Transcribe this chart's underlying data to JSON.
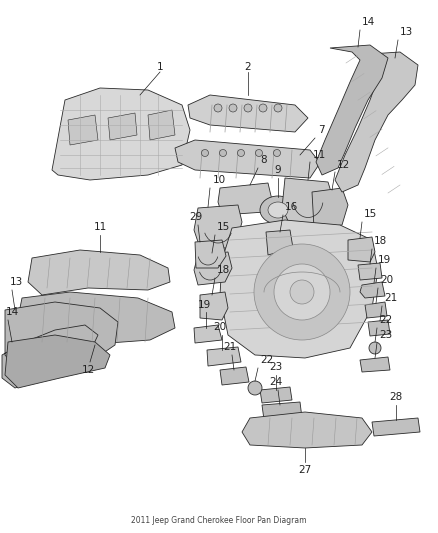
{
  "background_color": "#ffffff",
  "fig_width": 4.38,
  "fig_height": 5.33,
  "dpi": 100,
  "label_fontsize": 7.5,
  "label_color": "#222222",
  "line_color": "#1a1a1a",
  "part_edge_color": "#2a2a2a",
  "part_face_color": "#e8e8e8",
  "part_face_dark": "#c0c0c0",
  "part_face_darker": "#a8a8a8",
  "callout_lw": 0.5,
  "part_lw": 0.6
}
